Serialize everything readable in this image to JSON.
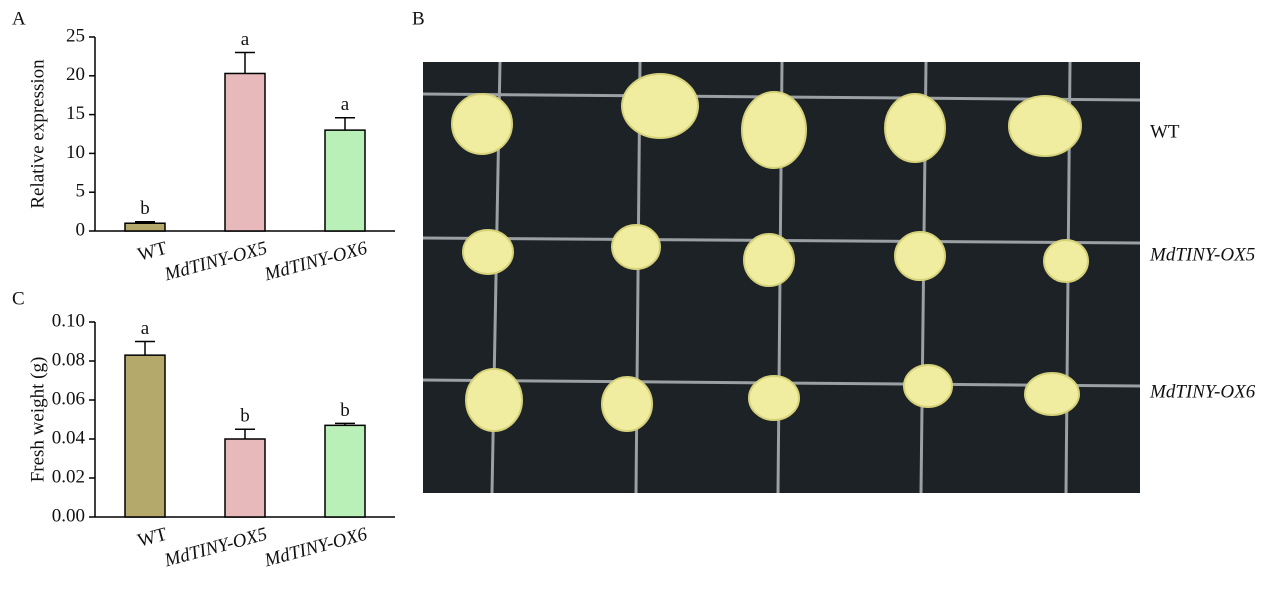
{
  "chart_data": [
    {
      "type": "bar",
      "panel": "A",
      "y_label": "Relative expression",
      "categories": [
        "WT",
        "MdTINY-OX5",
        "MdTINY-OX6"
      ],
      "values": [
        1,
        20.3,
        13.0
      ],
      "errors": [
        0.2,
        2.7,
        1.6
      ],
      "value_labels": [
        "b",
        "a",
        "a"
      ],
      "colors": [
        "#b5a86b",
        "#e8b9bb",
        "#b8f0b8"
      ],
      "ylim": [
        0,
        25
      ],
      "yticks": [
        0,
        5,
        10,
        15,
        20,
        25
      ]
    },
    {
      "type": "bar",
      "panel": "C",
      "y_label": "Fresh weight (g)",
      "categories": [
        "WT",
        "MdTINY-OX5",
        "MdTINY-OX6"
      ],
      "values": [
        0.083,
        0.04,
        0.047
      ],
      "errors": [
        0.007,
        0.005,
        0.001
      ],
      "value_labels": [
        "a",
        "b",
        "b"
      ],
      "colors": [
        "#b5a86b",
        "#e8b9bb",
        "#b8f0b8"
      ],
      "ylim": [
        0,
        0.1
      ],
      "yticks": [
        {
          "value": 0,
          "label": "0.00"
        },
        {
          "value": 0.02,
          "label": "0.02"
        },
        {
          "value": 0.04,
          "label": "0.04"
        },
        {
          "value": 0.06,
          "label": "0.06"
        },
        {
          "value": 0.08,
          "label": "0.08"
        },
        {
          "value": 0.1,
          "label": "0.10"
        }
      ]
    }
  ],
  "photo": {
    "panel": "B",
    "row_labels": [
      "WT",
      "MdTINY-OX5",
      "MdTINY-OX6"
    ]
  }
}
